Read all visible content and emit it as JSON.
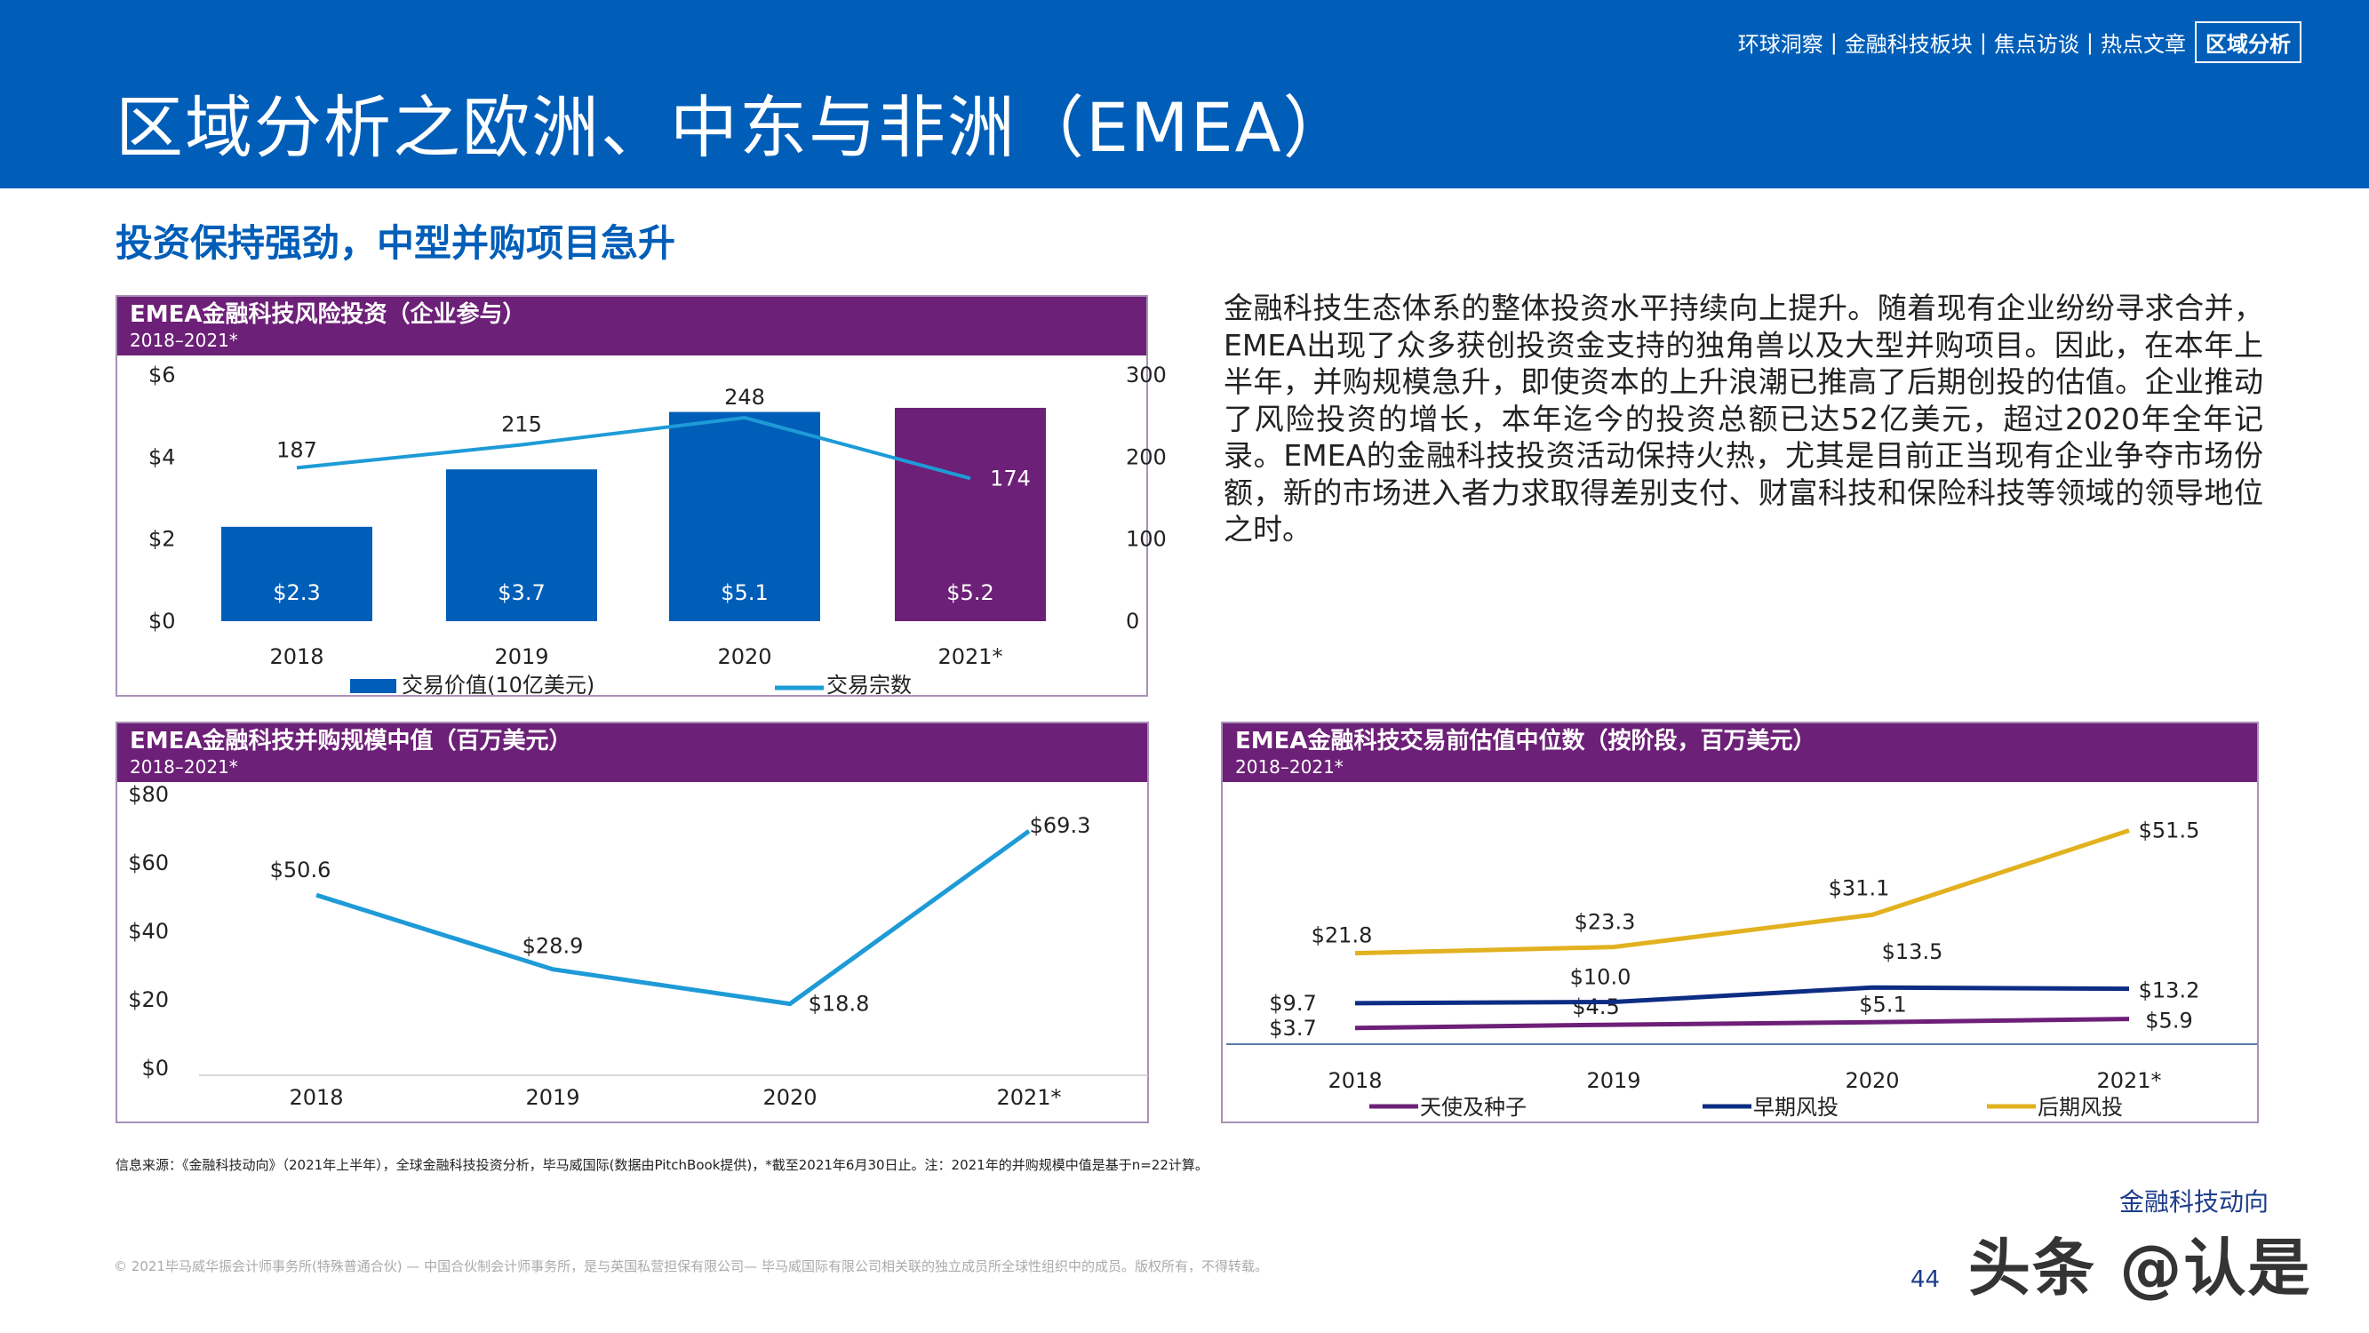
{
  "header": {
    "title": "区域分析之欧洲、中东与非洲（EMEA）",
    "nav": [
      "环球洞察",
      "金融科技板块",
      "焦点访谈",
      "热点文章"
    ],
    "nav_active": "区域分析"
  },
  "subtitle": "投资保持强劲，中型并购项目急升",
  "paragraph": "金融科技生态体系的整体投资水平持续向上提升。随着现有企业纷纷寻求合并，EMEA出现了众多获创投资金支持的独角兽以及大型并购项目。因此，在本年上半年，并购规模急升，即使资本的上升浪潮已推高了后期创投的估值。企业推动了风险投资的增长，本年迄今的投资总额已达52亿美元，超过2020年全年记录。EMEA的金融科技投资活动保持火热，尤其是目前正当现有企业争夺市场份额，新的市场进入者力求取得差别支付、财富科技和保险科技等领域的领导地位之时。",
  "footnote": "信息来源：《金融科技动向》（2021年上半年），全球金融科技投资分析，毕马威国际(数据由PitchBook提供)，*截至2021年6月30日止。注：2021年的并购规模中值是基于n=22计算。",
  "copyright": "© 2021毕马威华振会计师事务所(特殊普通合伙) — 中国合伙制会计师事务所，是与英国私营担保有限公司— 毕马威国际有限公司相关联的独立成员所全球性组织中的成员。版权所有，不得转载。",
  "brand": "金融科技动向",
  "page_number": "44",
  "watermark": "头条 @认是",
  "colors": {
    "header_blue": "#005eb8",
    "purple": "#6d2077",
    "bar_blue": "#005eb8",
    "line_light_blue": "#1e9bd7",
    "dark_blue": "#0c2d83",
    "gold": "#e2b11f"
  },
  "chart_data": [
    {
      "type": "bar",
      "title": "EMEA金融科技风险投资（企业参与）",
      "subtitle": "2018–2021*",
      "categories": [
        "2018",
        "2019",
        "2020",
        "2021*"
      ],
      "series": [
        {
          "name": "交易价值(10亿美元)",
          "type": "bar",
          "values": [
            2.3,
            3.7,
            5.1,
            5.2
          ],
          "labels": [
            "$2.3",
            "$3.7",
            "$5.1",
            "$5.2"
          ],
          "colors": [
            "#005eb8",
            "#005eb8",
            "#005eb8",
            "#6d2077"
          ]
        },
        {
          "name": "交易宗数",
          "type": "line",
          "axis": "right",
          "values": [
            187,
            215,
            248,
            174
          ],
          "labels": [
            "187",
            "215",
            "248",
            "174"
          ]
        }
      ],
      "yticks": [
        "$0",
        "$2",
        "$4",
        "$6"
      ],
      "ylim": [
        0,
        6
      ],
      "y2ticks": [
        "0",
        "100",
        "200",
        "300"
      ],
      "y2lim": [
        0,
        300
      ],
      "legend": "bottom"
    },
    {
      "type": "line",
      "title": "EMEA金融科技并购规模中值（百万美元）",
      "subtitle": "2018–2021*",
      "categories": [
        "2018",
        "2019",
        "2020",
        "2021*"
      ],
      "series": [
        {
          "values": [
            50.6,
            28.9,
            18.8,
            69.3
          ],
          "labels": [
            "$50.6",
            "$28.9",
            "$18.8",
            "$69.3"
          ]
        }
      ],
      "yticks": [
        "$0",
        "$20",
        "$40",
        "$60",
        "$80"
      ],
      "ylim": [
        0,
        80
      ]
    },
    {
      "type": "line",
      "title": "EMEA金融科技交易前估值中位数（按阶段，百万美元）",
      "subtitle": "2018–2021*",
      "categories": [
        "2018",
        "2019",
        "2020",
        "2021*"
      ],
      "series": [
        {
          "name": "天使及种子",
          "color": "#6d2077",
          "values": [
            3.7,
            4.5,
            5.1,
            5.9
          ],
          "labels": [
            "$3.7",
            "$4.5",
            "$5.1",
            "$5.9"
          ]
        },
        {
          "name": "早期风投",
          "color": "#0c2d83",
          "values": [
            9.7,
            10.0,
            13.5,
            13.2
          ],
          "labels": [
            "$9.7",
            "$10.0",
            "$13.5",
            "$13.2"
          ]
        },
        {
          "name": "后期风投",
          "color": "#e2b11f",
          "values": [
            21.8,
            23.3,
            31.1,
            51.5
          ],
          "labels": [
            "$21.8",
            "$23.3",
            "$31.1",
            "$51.5"
          ]
        }
      ],
      "legend": "bottom"
    }
  ]
}
